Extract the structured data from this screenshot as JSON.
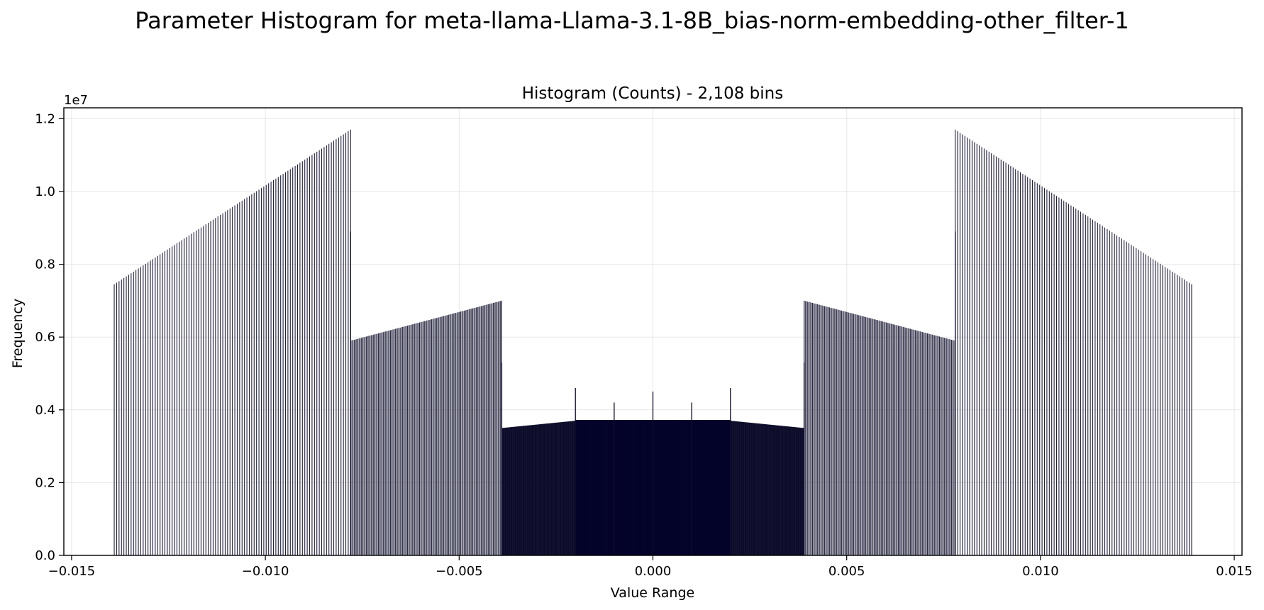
{
  "figure": {
    "suptitle": "Parameter Histogram for meta-llama-Llama-3.1-8B_bias-norm-embedding-other_filter-1"
  },
  "chart_data": {
    "type": "bar",
    "title": "Histogram (Counts) - 2,108 bins",
    "xlabel": "Value Range",
    "ylabel": "Frequency",
    "y_offset_label": "1e7",
    "bins": 2108,
    "xlim": [
      -0.0152,
      0.0152
    ],
    "ylim": [
      0,
      12300000
    ],
    "grid": true,
    "x_ticks": [
      {
        "value": -0.015,
        "label": "−0.015"
      },
      {
        "value": -0.01,
        "label": "−0.010"
      },
      {
        "value": -0.005,
        "label": "−0.005"
      },
      {
        "value": 0.0,
        "label": "0.000"
      },
      {
        "value": 0.005,
        "label": "0.005"
      },
      {
        "value": 0.01,
        "label": "0.010"
      },
      {
        "value": 0.015,
        "label": "0.015"
      }
    ],
    "y_ticks": [
      {
        "value": 0,
        "label": "0.0"
      },
      {
        "value": 2000000,
        "label": "0.2"
      },
      {
        "value": 4000000,
        "label": "0.4"
      },
      {
        "value": 6000000,
        "label": "0.6"
      },
      {
        "value": 8000000,
        "label": "0.8"
      },
      {
        "value": 10000000,
        "label": "1.0"
      },
      {
        "value": 12000000,
        "label": "1.2"
      }
    ],
    "segments": [
      {
        "x_start": -0.0139,
        "x_end": -0.0078,
        "y_start": 7450000,
        "y_end": 11700000,
        "spacing": 6.25e-05,
        "color": "#1f1d3a"
      },
      {
        "x_start": -0.0078,
        "x_end": -0.0039,
        "y_start": 5900000,
        "y_end": 7000000,
        "spacing": 3.12e-05,
        "color": "#2a2943"
      },
      {
        "x_start": -0.0039,
        "x_end": -0.002,
        "y_start": 3500000,
        "y_end": 3700000,
        "spacing": 1.56e-05,
        "color": "#0d0c2a"
      },
      {
        "x_start": -0.002,
        "x_end": 0.002,
        "y_start": 3720000,
        "y_end": 3720000,
        "spacing": 7.8e-06,
        "color": "#05042a"
      },
      {
        "x_start": 0.002,
        "x_end": 0.0039,
        "y_start": 3700000,
        "y_end": 3500000,
        "spacing": 1.56e-05,
        "color": "#0d0c2a"
      },
      {
        "x_start": 0.0039,
        "x_end": 0.0078,
        "y_start": 7000000,
        "y_end": 5900000,
        "spacing": 3.12e-05,
        "color": "#2a2943"
      },
      {
        "x_start": 0.0078,
        "x_end": 0.0139,
        "y_start": 11700000,
        "y_end": 7450000,
        "spacing": 6.25e-05,
        "color": "#1f1d3a"
      }
    ],
    "inner_fills": [
      {
        "x_start": -0.002,
        "x_end": 0.002,
        "y": 1850000
      },
      {
        "x_start": -0.001,
        "x_end": 0.001,
        "y": 2800000
      },
      {
        "x_start": -0.0004,
        "x_end": 0.0004,
        "y": 3300000
      }
    ],
    "spikes": [
      {
        "x": -0.002,
        "y": 4600000
      },
      {
        "x": -0.001,
        "y": 4200000
      },
      {
        "x": 0.0,
        "y": 4500000
      },
      {
        "x": 0.001,
        "y": 4200000
      },
      {
        "x": 0.002,
        "y": 4600000
      },
      {
        "x": -0.0078,
        "y": 8900000
      },
      {
        "x": 0.0078,
        "y": 8900000
      },
      {
        "x": -0.0039,
        "y": 5300000
      },
      {
        "x": 0.0039,
        "y": 5300000
      }
    ]
  }
}
